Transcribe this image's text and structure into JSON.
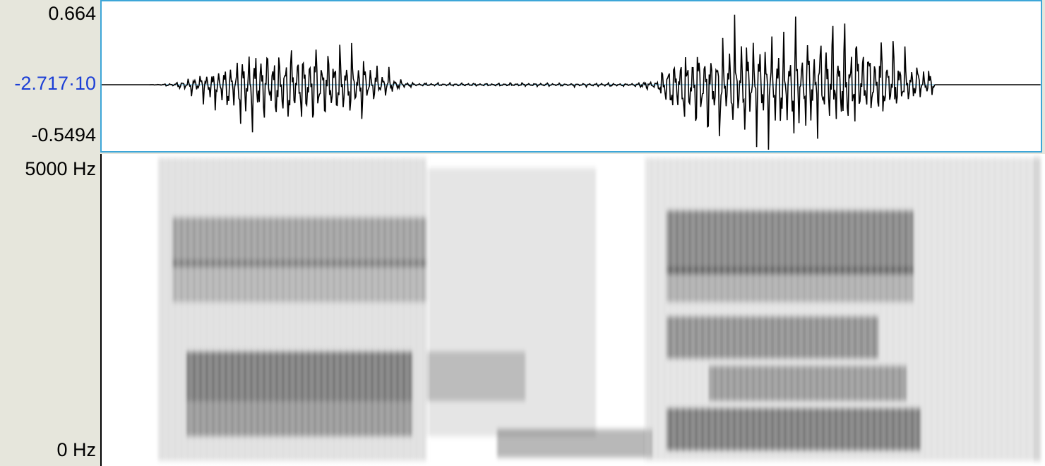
{
  "waveform": {
    "max_label": "0.664",
    "center_label": "-2.717·10",
    "min_label": "-0.5494"
  },
  "spectrogram": {
    "top_label": "5000 Hz",
    "bottom_label": "0 Hz"
  },
  "colors": {
    "selection_border": "#3da6d8",
    "center_label": "#1c3fd6",
    "background": "#e6e6dc"
  }
}
